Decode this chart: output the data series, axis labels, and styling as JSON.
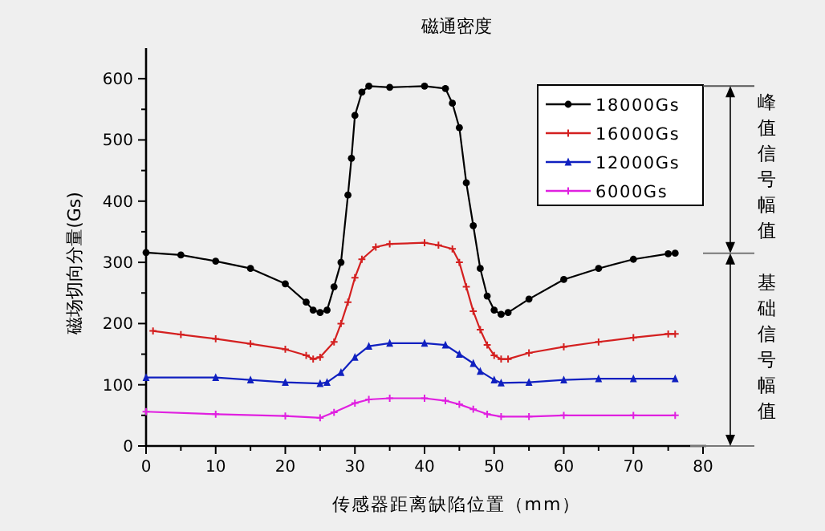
{
  "chart_data": {
    "type": "line",
    "title": "磁通密度",
    "xlabel": "传感器距离缺陷位置（mm）",
    "ylabel": "磁场切向分量(Gs)",
    "xlim": [
      0,
      80
    ],
    "ylim": [
      0,
      650
    ],
    "xticks": [
      0,
      10,
      20,
      30,
      40,
      50,
      60,
      70,
      80
    ],
    "yticks": [
      0,
      100,
      200,
      300,
      400,
      500,
      600
    ],
    "legend": "top right",
    "grid": false,
    "annotations": [
      "峰值信号幅值",
      "基础信号幅值"
    ],
    "series": [
      {
        "name": "18000Gs",
        "color": "#000000",
        "marker": "circle",
        "x": [
          0,
          5,
          10,
          15,
          20,
          23,
          24,
          25,
          26,
          27,
          28,
          29,
          29.5,
          30,
          31,
          32,
          35,
          40,
          43,
          44,
          45,
          46,
          47,
          48,
          49,
          50,
          51,
          52,
          55,
          60,
          65,
          70,
          75,
          76
        ],
        "values": [
          316,
          312,
          302,
          290,
          265,
          235,
          222,
          218,
          222,
          260,
          300,
          410,
          470,
          540,
          578,
          588,
          586,
          588,
          584,
          560,
          520,
          430,
          360,
          290,
          245,
          222,
          215,
          218,
          240,
          272,
          290,
          305,
          314,
          315
        ]
      },
      {
        "name": "16000Gs",
        "color": "#d42020",
        "marker": "cross",
        "x": [
          1,
          5,
          10,
          15,
          20,
          23,
          24,
          25,
          27,
          28,
          29,
          30,
          31,
          33,
          35,
          40,
          42,
          44,
          45,
          46,
          47,
          48,
          49,
          50,
          51,
          52,
          55,
          60,
          65,
          70,
          75,
          76
        ],
        "values": [
          188,
          182,
          175,
          167,
          158,
          148,
          142,
          145,
          170,
          200,
          235,
          275,
          305,
          325,
          330,
          332,
          328,
          322,
          300,
          260,
          220,
          190,
          165,
          148,
          142,
          142,
          152,
          162,
          170,
          177,
          183,
          183
        ]
      },
      {
        "name": "12000Gs",
        "color": "#1020c0",
        "marker": "triangle",
        "x": [
          0,
          10,
          15,
          20,
          25,
          26,
          28,
          30,
          32,
          35,
          40,
          43,
          45,
          47,
          48,
          50,
          51,
          55,
          60,
          65,
          70,
          76
        ],
        "values": [
          112,
          112,
          108,
          104,
          102,
          104,
          120,
          145,
          163,
          168,
          168,
          165,
          150,
          135,
          122,
          108,
          103,
          104,
          108,
          110,
          110,
          110
        ]
      },
      {
        "name": "6000Gs",
        "color": "#e020e0",
        "marker": "cross",
        "x": [
          0,
          10,
          20,
          25,
          27,
          30,
          32,
          35,
          40,
          43,
          45,
          47,
          49,
          51,
          55,
          60,
          70,
          76
        ],
        "values": [
          56,
          52,
          49,
          46,
          55,
          70,
          76,
          78,
          78,
          74,
          68,
          60,
          52,
          48,
          48,
          50,
          50,
          50
        ]
      }
    ]
  }
}
